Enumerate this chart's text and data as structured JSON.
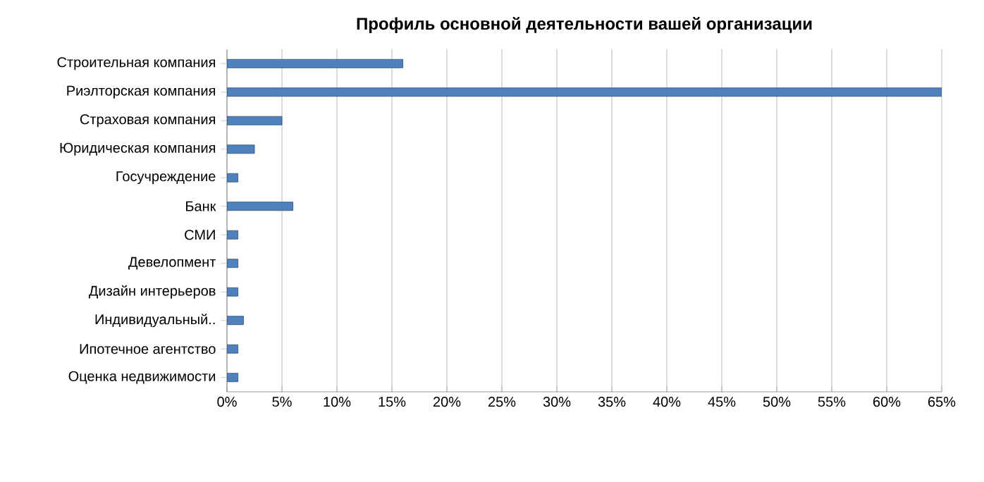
{
  "chart_data": {
    "type": "bar",
    "orientation": "horizontal",
    "title": "Профиль основной деятельности вашей организации",
    "categories": [
      "Строительная компания",
      "Риэлторская компания",
      "Страховая компания",
      "Юридическая компания",
      "Госучреждение",
      "Банк",
      "СМИ",
      "Девелопмент",
      "Дизайн интерьеров",
      "Индивидуальный..",
      "Ипотечное агентство",
      "Оценка недвижимости"
    ],
    "values": [
      16,
      65,
      5,
      2.5,
      1,
      6,
      1,
      1,
      1,
      1.5,
      1,
      1
    ],
    "color": "#4f81bd",
    "xlim": [
      0,
      65
    ],
    "xticks": [
      {
        "value": 0,
        "label": "0%"
      },
      {
        "value": 5,
        "label": "5%"
      },
      {
        "value": 10,
        "label": "10%"
      },
      {
        "value": 15,
        "label": "15%"
      },
      {
        "value": 20,
        "label": "20%"
      },
      {
        "value": 25,
        "label": "25%"
      },
      {
        "value": 30,
        "label": "30%"
      },
      {
        "value": 35,
        "label": "35%"
      },
      {
        "value": 40,
        "label": "40%"
      },
      {
        "value": 45,
        "label": "45%"
      },
      {
        "value": 50,
        "label": "50%"
      },
      {
        "value": 55,
        "label": "55%"
      },
      {
        "value": 60,
        "label": "60%"
      },
      {
        "value": 65,
        "label": "65%"
      }
    ],
    "grid": "x"
  }
}
